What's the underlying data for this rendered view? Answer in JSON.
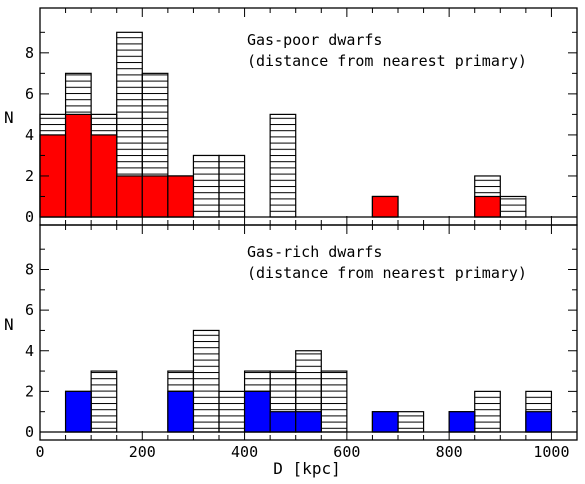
{
  "chart_data": [
    {
      "type": "bar",
      "panel": "top",
      "annotation_lines": [
        "Gas-poor dwarfs",
        "(distance from nearest primary)"
      ],
      "ylabel": "N",
      "xlim": [
        0,
        1050
      ],
      "ylim": [
        0,
        10
      ],
      "y_ticks": [
        0,
        2,
        4,
        6,
        8
      ],
      "bin_width": 50,
      "grid": false,
      "series": [
        {
          "style": "hatched",
          "bins": [
            [
              0,
              5
            ],
            [
              50,
              7
            ],
            [
              100,
              5
            ],
            [
              150,
              9
            ],
            [
              200,
              7
            ],
            [
              250,
              2
            ],
            [
              300,
              3
            ],
            [
              350,
              3
            ],
            [
              450,
              5
            ],
            [
              650,
              1
            ],
            [
              850,
              2
            ],
            [
              900,
              1
            ]
          ]
        },
        {
          "style": "filled",
          "color": "#ff0000",
          "bins": [
            [
              0,
              4
            ],
            [
              50,
              5
            ],
            [
              100,
              4
            ],
            [
              150,
              2
            ],
            [
              200,
              2
            ],
            [
              250,
              2
            ],
            [
              650,
              1
            ],
            [
              850,
              1
            ]
          ]
        }
      ]
    },
    {
      "type": "bar",
      "panel": "bottom",
      "annotation_lines": [
        "Gas-rich dwarfs",
        "(distance from nearest primary)"
      ],
      "xlabel": "D [kpc]",
      "ylabel": "N",
      "xlim": [
        0,
        1050
      ],
      "ylim": [
        0,
        10
      ],
      "x_ticks": [
        0,
        200,
        400,
        600,
        800,
        1000
      ],
      "y_ticks": [
        0,
        2,
        4,
        6,
        8
      ],
      "bin_width": 50,
      "grid": false,
      "series": [
        {
          "style": "hatched",
          "bins": [
            [
              50,
              2
            ],
            [
              100,
              3
            ],
            [
              250,
              3
            ],
            [
              300,
              5
            ],
            [
              350,
              2
            ],
            [
              400,
              3
            ],
            [
              450,
              3
            ],
            [
              500,
              4
            ],
            [
              550,
              3
            ],
            [
              650,
              1
            ],
            [
              700,
              1
            ],
            [
              800,
              1
            ],
            [
              850,
              2
            ],
            [
              950,
              2
            ]
          ]
        },
        {
          "style": "filled",
          "color": "#0000ff",
          "bins": [
            [
              50,
              2
            ],
            [
              250,
              2
            ],
            [
              400,
              2
            ],
            [
              450,
              1
            ],
            [
              500,
              1
            ],
            [
              650,
              1
            ],
            [
              800,
              1
            ],
            [
              950,
              1
            ]
          ]
        }
      ]
    }
  ]
}
